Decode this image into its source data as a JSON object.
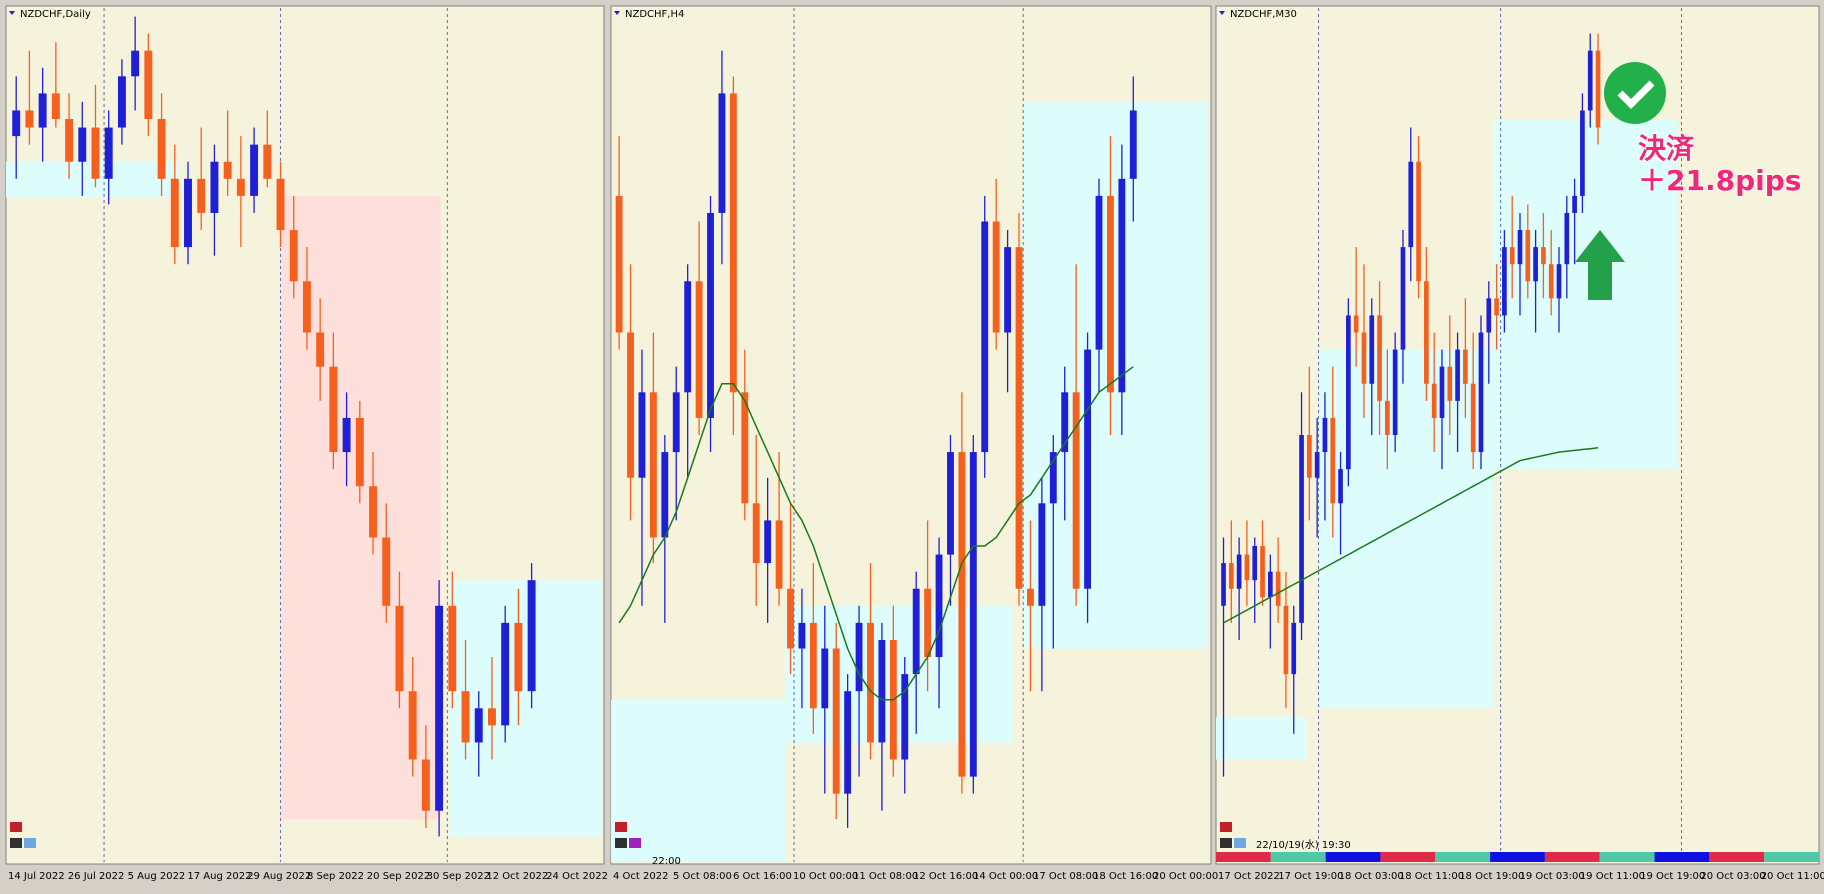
{
  "panels": [
    {
      "title": "NZDCHF,Daily",
      "ylim": [
        0,
        100
      ],
      "bull_color": "#1f1fd6",
      "bear_color": "#f5601f",
      "x_labels": [
        "14 Jul 2022",
        "26 Jul 2022",
        "5 Aug 2022",
        "17 Aug 2022",
        "29 Aug 2022",
        "8 Sep 2022",
        "20 Sep 2022",
        "30 Sep 2022",
        "12 Oct 2022",
        "24 Oct 2022"
      ],
      "candles": [
        [
          85,
          92,
          80,
          88
        ],
        [
          88,
          95,
          84,
          86
        ],
        [
          86,
          93,
          82,
          90
        ],
        [
          90,
          96,
          86,
          87
        ],
        [
          87,
          90,
          80,
          82
        ],
        [
          82,
          89,
          78,
          86
        ],
        [
          86,
          91,
          79,
          80
        ],
        [
          80,
          88,
          77,
          86
        ],
        [
          86,
          94,
          84,
          92
        ],
        [
          92,
          99,
          88,
          95
        ],
        [
          95,
          97,
          85,
          87
        ],
        [
          87,
          90,
          78,
          80
        ],
        [
          80,
          84,
          70,
          72
        ],
        [
          72,
          82,
          70,
          80
        ],
        [
          80,
          86,
          74,
          76
        ],
        [
          76,
          84,
          71,
          82
        ],
        [
          82,
          88,
          78,
          80
        ],
        [
          80,
          85,
          72,
          78
        ],
        [
          78,
          86,
          76,
          84
        ],
        [
          84,
          88,
          79,
          80
        ],
        [
          80,
          82,
          72,
          74
        ],
        [
          74,
          78,
          66,
          68
        ],
        [
          68,
          72,
          60,
          62
        ],
        [
          62,
          66,
          54,
          58
        ],
        [
          58,
          62,
          46,
          48
        ],
        [
          48,
          55,
          44,
          52
        ],
        [
          52,
          54,
          42,
          44
        ],
        [
          44,
          48,
          36,
          38
        ],
        [
          38,
          42,
          28,
          30
        ],
        [
          30,
          34,
          18,
          20
        ],
        [
          20,
          24,
          10,
          12
        ],
        [
          12,
          16,
          4,
          6
        ],
        [
          6,
          33,
          3,
          30
        ],
        [
          30,
          34,
          18,
          20
        ],
        [
          20,
          26,
          12,
          14
        ],
        [
          14,
          20,
          10,
          18
        ],
        [
          18,
          24,
          12,
          16
        ],
        [
          16,
          30,
          14,
          28
        ],
        [
          28,
          32,
          16,
          20
        ],
        [
          20,
          35,
          18,
          33
        ]
      ]
    },
    {
      "title": "NZDCHF,H4",
      "ylim": [
        0,
        100
      ],
      "bull_color": "#1f1fd6",
      "bear_color": "#f5601f",
      "ma_color": "#1a7a1a",
      "time_label": "22:00",
      "x_labels": [
        "4 Oct 2022",
        "5 Oct 08:00",
        "6 Oct 16:00",
        "10 Oct 00:00",
        "11 Oct 08:00",
        "12 Oct 16:00",
        "14 Oct 00:00",
        "17 Oct 08:00",
        "18 Oct 16:00",
        "20 Oct 00:00"
      ],
      "candles": [
        [
          78,
          85,
          60,
          62
        ],
        [
          62,
          70,
          40,
          45
        ],
        [
          45,
          60,
          30,
          55
        ],
        [
          55,
          62,
          35,
          38
        ],
        [
          38,
          50,
          28,
          48
        ],
        [
          48,
          58,
          40,
          55
        ],
        [
          55,
          70,
          45,
          68
        ],
        [
          68,
          75,
          50,
          52
        ],
        [
          52,
          78,
          48,
          76
        ],
        [
          76,
          95,
          70,
          90
        ],
        [
          90,
          92,
          50,
          55
        ],
        [
          55,
          60,
          40,
          42
        ],
        [
          42,
          50,
          30,
          35
        ],
        [
          35,
          45,
          28,
          40
        ],
        [
          40,
          48,
          30,
          32
        ],
        [
          32,
          42,
          22,
          25
        ],
        [
          25,
          32,
          18,
          28
        ],
        [
          28,
          35,
          15,
          18
        ],
        [
          18,
          30,
          8,
          25
        ],
        [
          25,
          28,
          5,
          8
        ],
        [
          8,
          22,
          4,
          20
        ],
        [
          20,
          30,
          10,
          28
        ],
        [
          28,
          35,
          12,
          14
        ],
        [
          14,
          28,
          6,
          26
        ],
        [
          26,
          30,
          10,
          12
        ],
        [
          12,
          24,
          8,
          22
        ],
        [
          22,
          34,
          15,
          32
        ],
        [
          32,
          40,
          20,
          24
        ],
        [
          24,
          38,
          18,
          36
        ],
        [
          36,
          50,
          30,
          48
        ],
        [
          48,
          55,
          8,
          10
        ],
        [
          10,
          50,
          8,
          48
        ],
        [
          48,
          78,
          45,
          75
        ],
        [
          75,
          80,
          60,
          62
        ],
        [
          62,
          74,
          55,
          72
        ],
        [
          72,
          76,
          30,
          32
        ],
        [
          32,
          40,
          20,
          30
        ],
        [
          30,
          45,
          20,
          42
        ],
        [
          42,
          50,
          25,
          48
        ],
        [
          48,
          58,
          40,
          55
        ],
        [
          55,
          70,
          30,
          32
        ],
        [
          32,
          62,
          28,
          60
        ],
        [
          60,
          80,
          55,
          78
        ],
        [
          78,
          85,
          50,
          55
        ],
        [
          55,
          84,
          50,
          80
        ],
        [
          80,
          92,
          75,
          88
        ]
      ],
      "ma": [
        28,
        30,
        33,
        36,
        38,
        41,
        45,
        49,
        53,
        56,
        56,
        54,
        51,
        48,
        45,
        42,
        40,
        37,
        33,
        29,
        25,
        22,
        20,
        19,
        19,
        20,
        22,
        24,
        27,
        31,
        35,
        37,
        37,
        38,
        40,
        42,
        43,
        45,
        47,
        49,
        51,
        53,
        55,
        56,
        57,
        58
      ]
    },
    {
      "title": "NZDCHF,M30",
      "ylim": [
        0,
        100
      ],
      "bull_color": "#1f1fd6",
      "bear_color": "#f5601f",
      "ma_color": "#1a7a1a",
      "time_label": "22/10/19(水) 19:30",
      "x_labels": [
        "17 Oct 2022",
        "17 Oct 19:00",
        "18 Oct 03:00",
        "18 Oct 11:00",
        "18 Oct 19:00",
        "19 Oct 03:00",
        "19 Oct 11:00",
        "19 Oct 19:00",
        "20 Oct 03:00",
        "20 Oct 11:00"
      ],
      "candles": [
        [
          30,
          38,
          10,
          35
        ],
        [
          35,
          40,
          28,
          32
        ],
        [
          32,
          38,
          26,
          36
        ],
        [
          36,
          40,
          30,
          33
        ],
        [
          33,
          38,
          28,
          37
        ],
        [
          37,
          40,
          30,
          31
        ],
        [
          31,
          36,
          25,
          34
        ],
        [
          34,
          38,
          28,
          30
        ],
        [
          30,
          34,
          18,
          22
        ],
        [
          22,
          30,
          15,
          28
        ],
        [
          28,
          55,
          26,
          50
        ],
        [
          50,
          58,
          40,
          45
        ],
        [
          45,
          52,
          38,
          48
        ],
        [
          48,
          55,
          40,
          52
        ],
        [
          52,
          58,
          38,
          42
        ],
        [
          42,
          48,
          36,
          46
        ],
        [
          46,
          66,
          44,
          64
        ],
        [
          64,
          72,
          58,
          62
        ],
        [
          62,
          70,
          52,
          56
        ],
        [
          56,
          66,
          50,
          64
        ],
        [
          64,
          68,
          50,
          54
        ],
        [
          54,
          60,
          46,
          50
        ],
        [
          50,
          62,
          48,
          60
        ],
        [
          60,
          74,
          56,
          72
        ],
        [
          72,
          86,
          68,
          82
        ],
        [
          82,
          85,
          66,
          68
        ],
        [
          68,
          72,
          54,
          56
        ],
        [
          56,
          62,
          48,
          52
        ],
        [
          52,
          60,
          46,
          58
        ],
        [
          58,
          64,
          50,
          54
        ],
        [
          54,
          62,
          48,
          60
        ],
        [
          60,
          66,
          52,
          56
        ],
        [
          56,
          62,
          46,
          48
        ],
        [
          48,
          64,
          46,
          62
        ],
        [
          62,
          68,
          56,
          66
        ],
        [
          66,
          70,
          60,
          64
        ],
        [
          64,
          74,
          62,
          72
        ],
        [
          72,
          78,
          66,
          70
        ],
        [
          70,
          76,
          64,
          74
        ],
        [
          74,
          77,
          66,
          68
        ],
        [
          68,
          74,
          62,
          72
        ],
        [
          72,
          76,
          66,
          70
        ],
        [
          70,
          74,
          64,
          66
        ],
        [
          66,
          72,
          62,
          70
        ],
        [
          70,
          78,
          66,
          76
        ],
        [
          76,
          80,
          70,
          78
        ],
        [
          78,
          90,
          76,
          88
        ],
        [
          88,
          97,
          86,
          95
        ],
        [
          95,
          97,
          84,
          86
        ]
      ],
      "ma": [
        28,
        28.5,
        29,
        29.5,
        30,
        30.5,
        31,
        31.5,
        32,
        32.5,
        33,
        33.5,
        34,
        34.5,
        35,
        35.5,
        36,
        36.5,
        37,
        37.5,
        38,
        38.5,
        39,
        39.5,
        40,
        40.5,
        41,
        41.5,
        42,
        42.5,
        43,
        43.5,
        44,
        44.5,
        45,
        45.5,
        46,
        46.5,
        47,
        47.2,
        47.4,
        47.6,
        47.8,
        48,
        48.1,
        48.2,
        48.3,
        48.4,
        48.5
      ],
      "note_title": "決済",
      "note_result": "＋21.8pips"
    }
  ]
}
